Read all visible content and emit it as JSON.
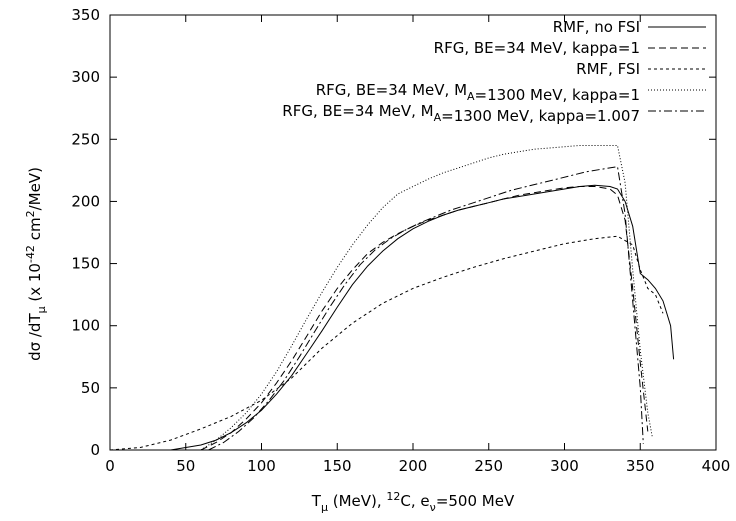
{
  "chart_data": {
    "type": "line",
    "xlabel": "T_μ (MeV), ¹²C,  e_ν=500 MeV",
    "ylabel": "dσ /dT_μ (x 10⁻⁴² cm²/MeV)",
    "xlim": [
      0,
      400
    ],
    "ylim": [
      0,
      350
    ],
    "xticks": [
      0,
      50,
      100,
      150,
      200,
      250,
      300,
      350,
      400
    ],
    "yticks": [
      0,
      50,
      100,
      150,
      200,
      250,
      300,
      350
    ],
    "grid": false,
    "legend_position": "top-right",
    "series": [
      {
        "name": "RMF, no FSI",
        "dash": "solid",
        "x": [
          40,
          60,
          70,
          80,
          90,
          100,
          110,
          120,
          130,
          140,
          150,
          160,
          170,
          180,
          190,
          200,
          210,
          220,
          230,
          240,
          250,
          260,
          270,
          280,
          290,
          300,
          310,
          320,
          330,
          335,
          340,
          345,
          350,
          355,
          360,
          365,
          370,
          372
        ],
        "y": [
          0,
          4,
          8,
          14,
          22,
          32,
          45,
          60,
          78,
          96,
          115,
          133,
          148,
          160,
          170,
          178,
          184,
          189,
          193,
          196,
          199,
          202,
          204,
          206,
          208,
          210,
          212,
          213,
          212,
          210,
          200,
          180,
          142,
          137,
          130,
          120,
          100,
          73
        ]
      },
      {
        "name": "RFG, BE=34 MeV, kappa=1",
        "dash": "7 4",
        "x": [
          60,
          70,
          80,
          90,
          100,
          110,
          120,
          130,
          140,
          150,
          160,
          170,
          180,
          190,
          200,
          210,
          220,
          230,
          240,
          250,
          260,
          270,
          280,
          290,
          300,
          310,
          320,
          330,
          335,
          340,
          345,
          350,
          355
        ],
        "y": [
          0,
          6,
          14,
          25,
          38,
          54,
          72,
          92,
          112,
          130,
          145,
          158,
          167,
          174,
          180,
          185,
          189,
          193,
          196,
          199,
          202,
          205,
          207,
          209,
          211,
          212,
          212,
          210,
          205,
          185,
          130,
          70,
          15
        ]
      },
      {
        "name": "RMF, FSI",
        "dash": "3 3",
        "x": [
          0,
          20,
          40,
          60,
          80,
          100,
          120,
          140,
          160,
          180,
          200,
          220,
          240,
          260,
          280,
          300,
          320,
          335,
          345,
          350,
          355,
          360,
          365
        ],
        "y": [
          0,
          2,
          8,
          17,
          27,
          40,
          58,
          82,
          102,
          118,
          130,
          139,
          147,
          154,
          160,
          166,
          170,
          172,
          165,
          145,
          130,
          125,
          110
        ]
      },
      {
        "name": "RFG, BE=34 MeV, M_A=1300 MeV, kappa=1",
        "dash": "1 2",
        "x": [
          60,
          70,
          80,
          90,
          100,
          110,
          120,
          130,
          140,
          150,
          160,
          170,
          180,
          190,
          200,
          210,
          220,
          230,
          240,
          250,
          260,
          270,
          280,
          290,
          300,
          310,
          320,
          330,
          335,
          340,
          345,
          350,
          355,
          358
        ],
        "y": [
          0,
          8,
          18,
          30,
          45,
          63,
          84,
          106,
          127,
          147,
          165,
          181,
          195,
          206,
          212,
          218,
          223,
          227,
          231,
          235,
          238,
          240,
          242,
          243,
          244,
          245,
          245,
          245,
          245,
          215,
          145,
          80,
          30,
          10
        ]
      },
      {
        "name": "RFG, BE=34 MeV, M_A=1300 MeV, kappa=1.007",
        "dash": "8 3 2 3",
        "x": [
          65,
          75,
          85,
          95,
          105,
          115,
          125,
          135,
          145,
          155,
          165,
          175,
          185,
          195,
          205,
          215,
          225,
          235,
          245,
          255,
          265,
          275,
          285,
          295,
          305,
          315,
          325,
          335,
          340,
          345,
          350,
          352
        ],
        "y": [
          0,
          6,
          15,
          26,
          40,
          56,
          75,
          95,
          115,
          133,
          149,
          161,
          170,
          177,
          183,
          188,
          193,
          197,
          201,
          205,
          209,
          212,
          215,
          218,
          221,
          224,
          226,
          228,
          190,
          120,
          50,
          5
        ]
      }
    ]
  }
}
